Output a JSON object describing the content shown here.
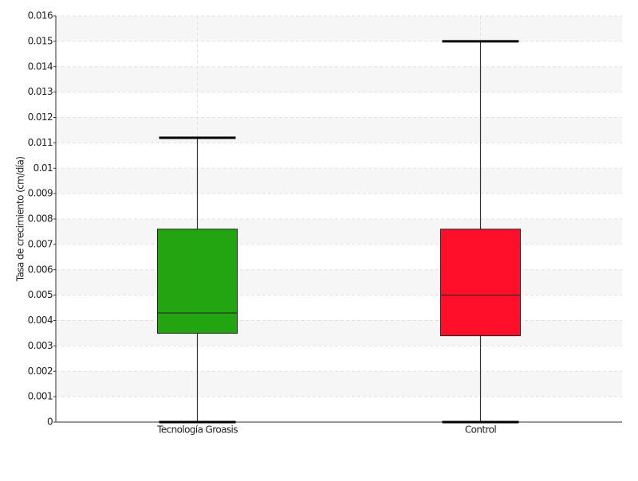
{
  "chart_data": {
    "type": "box",
    "y_label": "Tasa de crecimiento (cm/día)",
    "categories": [
      "Tecnología Groasis",
      "Control"
    ],
    "series": [
      {
        "name": null,
        "colors": [
          "#22a510",
          "#ff0f2a"
        ],
        "min": [
          0,
          0
        ],
        "q1": [
          0.0035,
          0.0034
        ],
        "median": [
          0.0043,
          0.005
        ],
        "q3": [
          0.0076,
          0.0076
        ],
        "max": [
          0.0112,
          0.015
        ]
      }
    ],
    "ylim": [
      0,
      0.016
    ],
    "yticks": [
      0,
      0.001,
      0.002,
      0.003,
      0.004,
      0.005,
      0.006,
      0.007,
      0.008,
      0.009,
      0.01,
      0.011,
      0.012,
      0.013,
      0.014,
      0.015,
      0.016
    ],
    "grid": true
  }
}
